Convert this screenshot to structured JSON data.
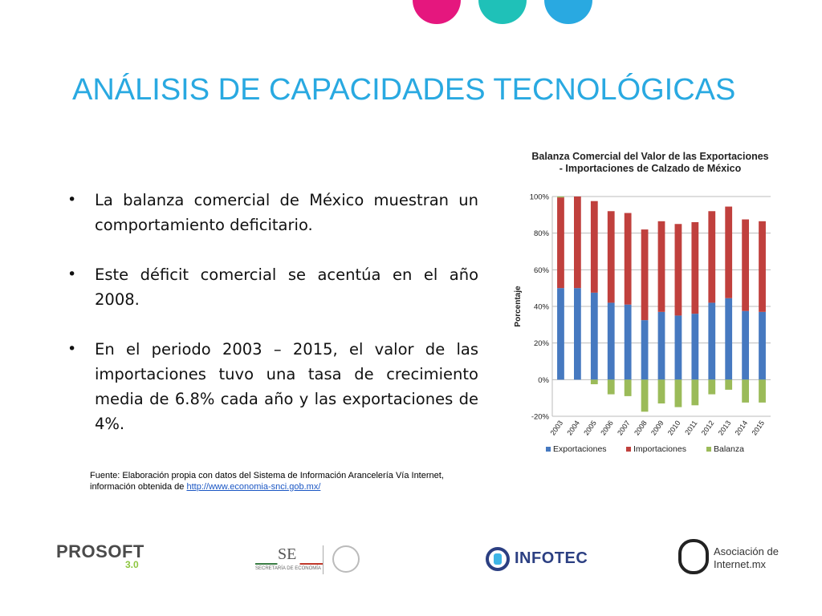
{
  "slide": {
    "title": "ANÁLISIS DE CAPACIDADES TECNOLÓGICAS",
    "bullets": [
      "La balanza comercial de México muestran un comportamiento deficitario.",
      "Este déficit comercial se acentúa en el año 2008.",
      "En el periodo 2003 – 2015, el valor de las importaciones tuvo una tasa de crecimiento media de 6.8% cada año y las exportaciones de 4%."
    ],
    "source_text": "Fuente: Elaboración propia con datos del Sistema de Información Arancelería Vía Internet, información obtenida de ",
    "source_link": "http://www.economia-snci.gob.mx/"
  },
  "colors": {
    "title": "#29a9e1",
    "dots": [
      "#e5177e",
      "#1fc1b8",
      "#29a9e1"
    ],
    "exportaciones": "#4679c0",
    "importaciones": "#c0403d",
    "balanza": "#9bbb59"
  },
  "logos": {
    "prosoft": "PROSOFT",
    "prosoft_version": "3.0",
    "se": "SE",
    "se_sub": "SECRETARÍA DE ECONOMÍA",
    "infotec": "INFOTEC",
    "aimx_line1": "Asociación de",
    "aimx_line2": "Internet.mx"
  },
  "chart_data": {
    "type": "bar",
    "title": "Balanza Comercial del Valor de las Exportaciones - Importaciones de Calzado de México",
    "ylabel": "Porcentaje",
    "categories": [
      "2003",
      "2004",
      "2005",
      "2006",
      "2007",
      "2008",
      "2009",
      "2010",
      "2011",
      "2012",
      "2013",
      "2014",
      "2015"
    ],
    "yticks": [
      "100%",
      "80%",
      "60%",
      "40%",
      "20%",
      "0%",
      "-20%"
    ],
    "ylim": [
      -20,
      100
    ],
    "grid": true,
    "legend_position": "bottom",
    "series": [
      {
        "name": "Exportaciones",
        "values": [
          50,
          50,
          47.5,
          42,
          41,
          32.5,
          37,
          35,
          36,
          42,
          44.5,
          37.5,
          37
        ]
      },
      {
        "name": "Importaciones",
        "values": [
          49.5,
          50,
          50,
          50,
          50,
          49.5,
          49.5,
          50,
          50,
          50,
          50,
          50,
          49.5
        ]
      },
      {
        "name": "Balanza",
        "values": [
          0.5,
          0,
          -2.5,
          -8,
          -9,
          -17.5,
          -13,
          -15,
          -14,
          -8,
          -5.5,
          -12.5,
          -12.5
        ]
      }
    ]
  }
}
